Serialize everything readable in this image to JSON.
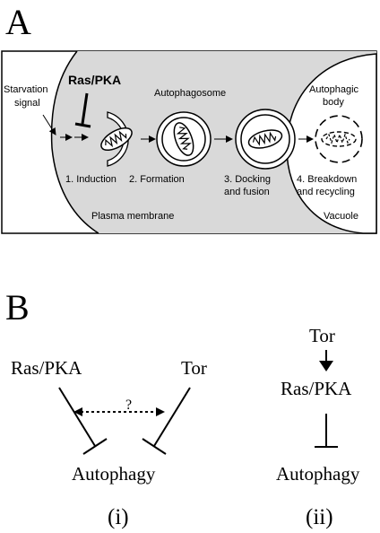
{
  "panel_a": {
    "letter": "A",
    "ras_pka": "Ras/PKA",
    "starvation_line1": "Starvation",
    "starvation_line2": "signal",
    "autophagosome": "Autophagosome",
    "autophagic_body_line1": "Autophagic",
    "autophagic_body_line2": "body",
    "step1": "1. Induction",
    "step2": "2. Formation",
    "step3_line1": "3. Docking",
    "step3_line2": "and fusion",
    "step4_line1": "4. Breakdown",
    "step4_line2": "and recycling",
    "plasma_membrane": "Plasma membrane",
    "vacuole": "Vacuole"
  },
  "panel_b": {
    "letter": "B",
    "model_i": {
      "ras_pka": "Ras/PKA",
      "tor": "Tor",
      "question": "?",
      "autophagy": "Autophagy",
      "label": "(i)"
    },
    "model_ii": {
      "tor": "Tor",
      "ras_pka": "Ras/PKA",
      "autophagy": "Autophagy",
      "label": "(ii)"
    }
  },
  "colors": {
    "cell_fill": "#d9d9d9",
    "stroke": "#000000",
    "background": "#ffffff"
  }
}
